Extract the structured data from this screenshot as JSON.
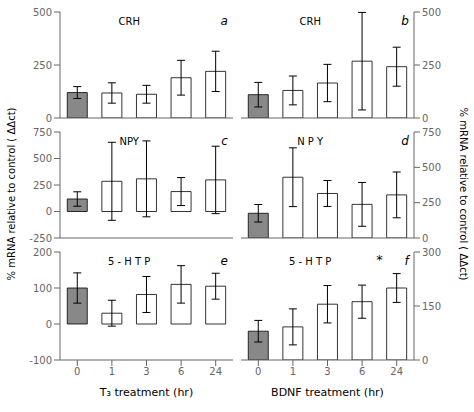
{
  "chart_data": [
    {
      "type": "bar",
      "annotations": [
        "CRH",
        "a"
      ],
      "categories": [
        "0",
        "1",
        "3",
        "6",
        "24"
      ],
      "values": [
        120,
        118,
        112,
        190,
        220
      ],
      "errors": [
        28,
        48,
        42,
        82,
        95
      ],
      "colors": [
        "#888888",
        "#ffffff",
        "#ffffff",
        "#ffffff",
        "#ffffff"
      ],
      "ylim": [
        0,
        500
      ],
      "yticks": [
        0,
        250,
        500
      ],
      "tick_labels": "y"
    },
    {
      "type": "bar",
      "annotations": [
        "CRH",
        "b"
      ],
      "categories": [
        "0",
        "1",
        "3",
        "6",
        "24"
      ],
      "values": [
        110,
        130,
        165,
        268,
        242
      ],
      "errors": [
        58,
        68,
        88,
        230,
        92
      ],
      "colors": [
        "#888888",
        "#ffffff",
        "#ffffff",
        "#ffffff",
        "#ffffff"
      ],
      "ylim": [
        0,
        500
      ],
      "yticks": [
        0,
        250,
        500
      ],
      "tick_labels": "y"
    },
    {
      "type": "bar",
      "annotations": [
        "NPY",
        "c"
      ],
      "categories": [
        "0",
        "1",
        "3",
        "6",
        "24"
      ],
      "values": [
        118,
        285,
        308,
        188,
        298
      ],
      "errors": [
        68,
        368,
        358,
        132,
        318
      ],
      "colors": [
        "#888888",
        "#ffffff",
        "#ffffff",
        "#ffffff",
        "#ffffff"
      ],
      "ylim": [
        -250,
        750
      ],
      "yticks": [
        -250,
        0,
        250,
        500,
        750
      ],
      "tick_labels": "y",
      "y_label": "% mRNA relative to control ( ΔΔct)"
    },
    {
      "type": "bar",
      "annotations": [
        "N P Y",
        "d"
      ],
      "categories": [
        "0",
        "1",
        "3",
        "6",
        "24"
      ],
      "values": [
        175,
        430,
        315,
        238,
        305
      ],
      "errors": [
        62,
        208,
        92,
        155,
        162
      ],
      "colors": [
        "#888888",
        "#ffffff",
        "#ffffff",
        "#ffffff",
        "#ffffff"
      ],
      "ylim": [
        0,
        750
      ],
      "yticks": [
        0,
        250,
        500,
        750
      ],
      "tick_labels": "y",
      "y_label": "% mRNA relative to control ( ΔΔct)"
    },
    {
      "type": "bar",
      "annotations": [
        "5 - H T P",
        "e"
      ],
      "categories": [
        "0",
        "1",
        "3",
        "6",
        "24"
      ],
      "values": [
        100,
        30,
        82,
        110,
        105
      ],
      "errors": [
        42,
        36,
        50,
        52,
        36
      ],
      "colors": [
        "#888888",
        "#ffffff",
        "#ffffff",
        "#ffffff",
        "#ffffff"
      ],
      "ylim": [
        -100,
        200
      ],
      "yticks": [
        -100,
        0,
        100,
        200
      ],
      "x_label": "T₃ treatment (hr)"
    },
    {
      "type": "bar",
      "annotations": [
        "5 - H T P",
        "f",
        "*"
      ],
      "categories": [
        "0",
        "1",
        "3",
        "6",
        "24"
      ],
      "values": [
        80,
        92,
        155,
        162,
        200
      ],
      "errors": [
        30,
        50,
        52,
        46,
        40
      ],
      "colors": [
        "#888888",
        "#ffffff",
        "#ffffff",
        "#ffffff",
        "#ffffff"
      ],
      "ylim": [
        0,
        300
      ],
      "yticks": [
        0,
        150,
        300
      ],
      "x_label": "BDNF treatment (hr)"
    }
  ]
}
